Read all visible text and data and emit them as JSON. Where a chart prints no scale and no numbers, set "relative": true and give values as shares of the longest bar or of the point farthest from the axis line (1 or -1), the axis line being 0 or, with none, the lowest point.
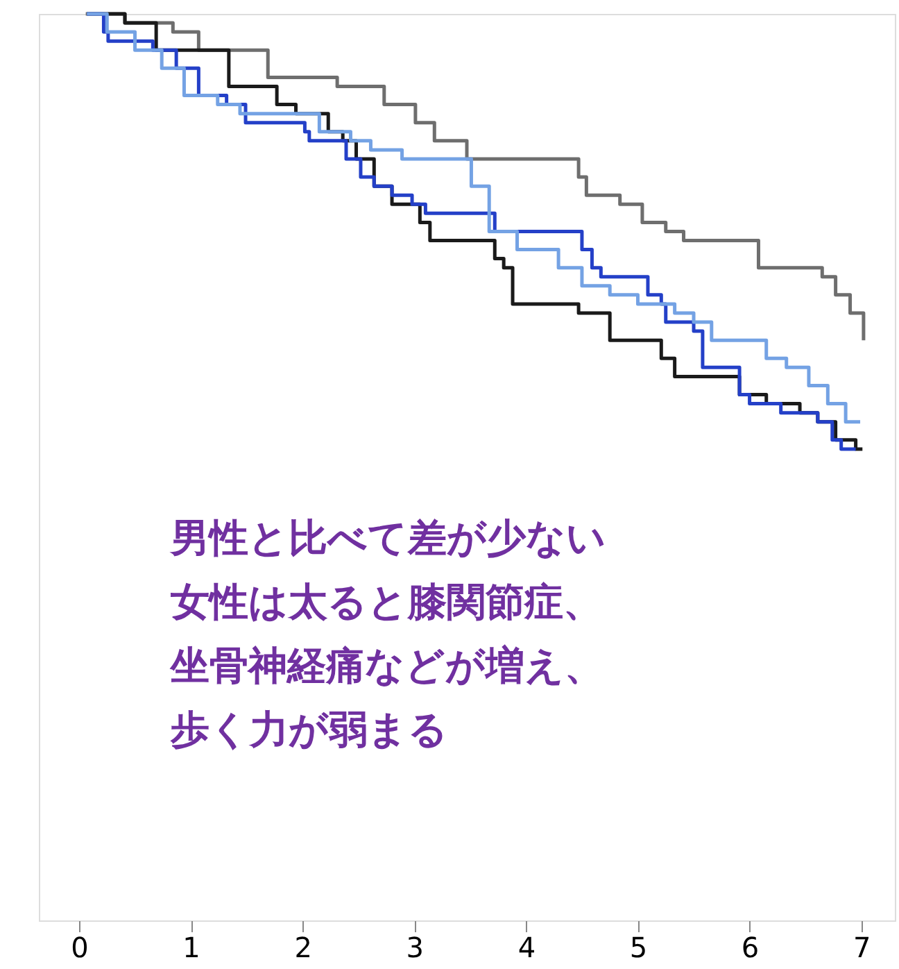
{
  "chart_data": {
    "type": "step",
    "relative": true,
    "legend": false,
    "grid": false,
    "xlim": [
      -0.36,
      7.3
    ],
    "xticks": [
      0,
      1,
      2,
      3,
      4,
      5,
      6,
      7
    ],
    "series": [
      {
        "color": "#6e6e6e",
        "x": [
          0.06,
          0.41,
          0.69,
          0.84,
          1.07,
          1.69,
          2.31,
          2.73,
          3.01,
          3.18,
          3.47,
          4.13,
          4.47,
          4.54,
          4.84,
          5.04,
          5.25,
          5.41,
          6.08,
          6.65,
          6.77,
          6.9,
          7.02
        ],
        "values": [
          1.0,
          0.99,
          0.99,
          0.98,
          0.96,
          0.93,
          0.92,
          0.9,
          0.88,
          0.86,
          0.84,
          0.84,
          0.82,
          0.8,
          0.79,
          0.77,
          0.76,
          0.75,
          0.72,
          0.71,
          0.69,
          0.67,
          0.64
        ]
      },
      {
        "color": "#1a1a1a",
        "x": [
          0.07,
          0.41,
          0.69,
          1.34,
          1.77,
          1.94,
          2.23,
          2.36,
          2.48,
          2.64,
          2.8,
          2.93,
          3.05,
          3.14,
          3.42,
          3.72,
          3.8,
          3.88,
          4.47,
          4.75,
          5.21,
          5.33,
          5.91,
          6.15,
          6.45,
          6.61,
          6.77,
          6.95,
          7.01
        ],
        "values": [
          1.0,
          0.99,
          0.96,
          0.92,
          0.9,
          0.89,
          0.87,
          0.86,
          0.84,
          0.81,
          0.79,
          0.79,
          0.77,
          0.75,
          0.75,
          0.73,
          0.72,
          0.68,
          0.67,
          0.64,
          0.62,
          0.6,
          0.58,
          0.57,
          0.56,
          0.55,
          0.53,
          0.52,
          0.52
        ]
      },
      {
        "color": "#2440c8",
        "x": [
          0.07,
          0.22,
          0.26,
          0.66,
          0.87,
          1.07,
          1.32,
          1.49,
          2.02,
          2.06,
          2.39,
          2.52,
          2.64,
          2.8,
          2.98,
          3.1,
          3.72,
          4.5,
          4.59,
          4.67,
          5.09,
          5.21,
          5.25,
          5.5,
          5.58,
          5.91,
          6.0,
          6.28,
          6.61,
          6.74,
          6.82,
          6.95
        ],
        "values": [
          1.0,
          0.98,
          0.97,
          0.96,
          0.94,
          0.91,
          0.9,
          0.88,
          0.87,
          0.86,
          0.84,
          0.82,
          0.81,
          0.8,
          0.79,
          0.78,
          0.76,
          0.74,
          0.72,
          0.71,
          0.69,
          0.68,
          0.66,
          0.65,
          0.61,
          0.58,
          0.57,
          0.56,
          0.55,
          0.53,
          0.52,
          0.52
        ]
      },
      {
        "color": "#74a2e4",
        "x": [
          0.07,
          0.25,
          0.5,
          0.74,
          0.94,
          1.24,
          1.44,
          2.15,
          2.43,
          2.61,
          2.89,
          3.51,
          3.67,
          3.92,
          4.29,
          4.5,
          4.75,
          5.0,
          5.33,
          5.5,
          5.66,
          6.15,
          6.33,
          6.53,
          6.7,
          6.86,
          6.99
        ],
        "values": [
          1.0,
          0.98,
          0.96,
          0.94,
          0.91,
          0.9,
          0.89,
          0.87,
          0.86,
          0.85,
          0.84,
          0.81,
          0.76,
          0.74,
          0.72,
          0.7,
          0.69,
          0.68,
          0.67,
          0.66,
          0.64,
          0.62,
          0.61,
          0.59,
          0.57,
          0.55,
          0.55
        ]
      }
    ],
    "annotations": [
      "男性と比べて差が少ない",
      "女性は太ると膝関節症、",
      "坐骨神経痛などが増え、",
      "歩く力が弱まる"
    ]
  }
}
